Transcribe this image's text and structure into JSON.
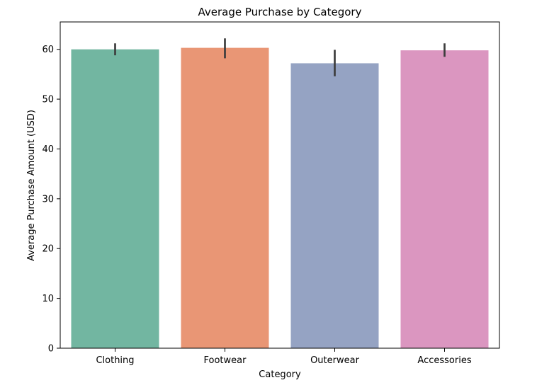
{
  "chart_data": {
    "type": "bar",
    "title": "Average Purchase by Category",
    "xlabel": "Category",
    "ylabel": "Average Purchase Amount (USD)",
    "categories": [
      "Clothing",
      "Footwear",
      "Outerwear",
      "Accessories"
    ],
    "values": [
      60.0,
      60.3,
      57.2,
      59.8
    ],
    "error_low": [
      58.8,
      58.2,
      54.6,
      58.5
    ],
    "error_high": [
      61.2,
      62.2,
      59.9,
      61.2
    ],
    "colors": [
      "#72b6a1",
      "#e99675",
      "#95a3c3",
      "#db96c0"
    ],
    "ylim": [
      0,
      65.5
    ],
    "yticks": [
      0,
      10,
      20,
      30,
      40,
      50,
      60
    ],
    "grid": false,
    "legend": "none"
  }
}
